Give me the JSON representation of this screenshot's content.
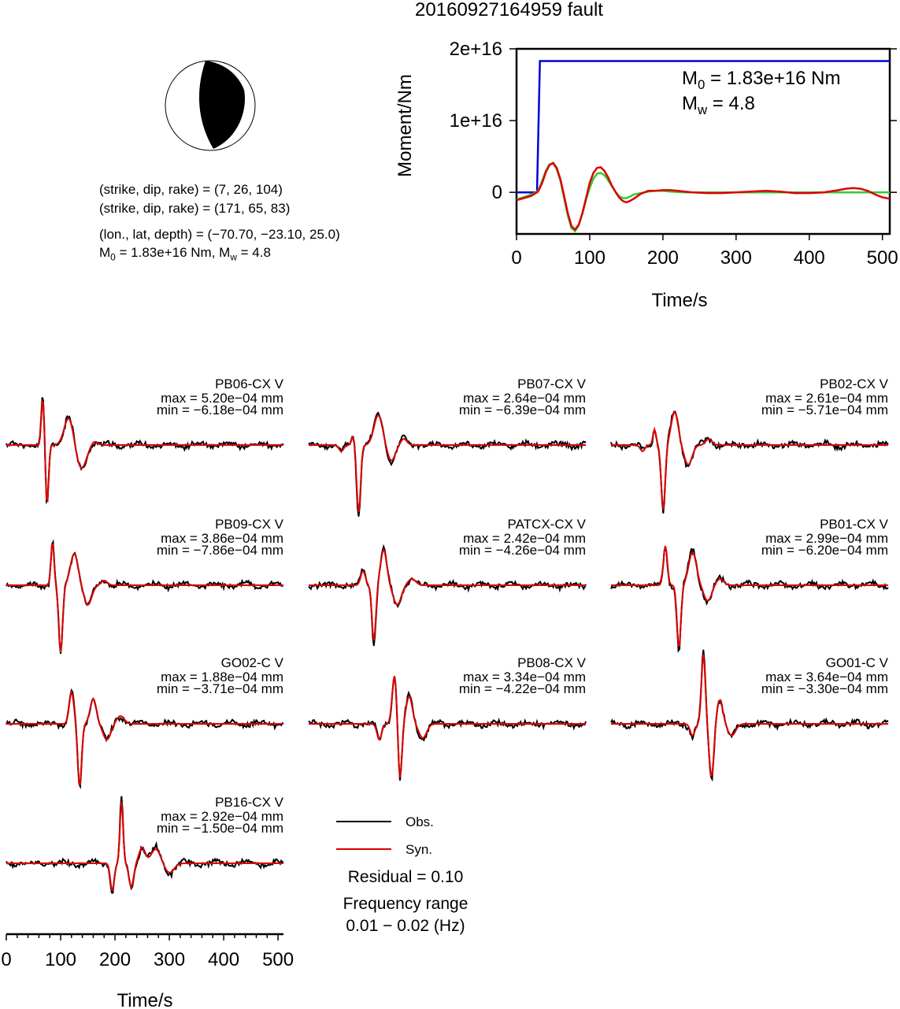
{
  "header": {
    "title": "20160927164959 fault"
  },
  "mechanism": {
    "plane1": "(strike, dip, rake) = (7, 26, 104)",
    "plane2": "(strike, dip, rake) = (171, 65, 83)",
    "location": "(lon., lat, depth) = (−70.70, −23.10, 25.0)",
    "m0_text": "1.83e+16 Nm,",
    "mw_text": "4.8"
  },
  "moment_chart": {
    "ylabel": "Moment/Nm",
    "xlabel": "Time/s",
    "m0_value": "1.83e+16 Nm",
    "mw_value": "4.8",
    "colors": {
      "cumulative": "#0000dd",
      "rate_red": "#dd0000",
      "rate_green": "#33cc33"
    }
  },
  "legend": {
    "obs_label": "Obs.",
    "syn_label": "Syn.",
    "residual": "Residual = 0.10",
    "freq_title": "Frequency range",
    "freq_range": "0.01 − 0.02 (Hz)",
    "obs_color": "#000000",
    "syn_color": "#dd0000"
  },
  "waveform_axis": {
    "xlabel": "Time/s"
  },
  "stations": [
    {
      "name": "PB06-CX V",
      "max": "max = 5.20e−04 mm",
      "min": "min = −6.18e−04 mm"
    },
    {
      "name": "PB07-CX V",
      "max": "max = 2.64e−04 mm",
      "min": "min = −6.39e−04 mm"
    },
    {
      "name": "PB02-CX V",
      "max": "max = 2.61e−04 mm",
      "min": "min = −5.71e−04 mm"
    },
    {
      "name": "PB09-CX V",
      "max": "max = 3.86e−04 mm",
      "min": "min = −7.86e−04 mm"
    },
    {
      "name": "PATCX-CX V",
      "max": "max = 2.42e−04 mm",
      "min": "min = −4.26e−04 mm"
    },
    {
      "name": "PB01-CX V",
      "max": "max = 2.99e−04 mm",
      "min": "min = −6.20e−04 mm"
    },
    {
      "name": "GO02-C V",
      "max": "max = 1.88e−04 mm",
      "min": "min = −3.71e−04 mm"
    },
    {
      "name": "PB08-CX V",
      "max": "max = 3.34e−04 mm",
      "min": "min = −4.22e−04 mm"
    },
    {
      "name": "GO01-C V",
      "max": "max = 3.64e−04 mm",
      "min": "min = −3.30e−04 mm"
    },
    {
      "name": "PB16-CX V",
      "max": "max = 2.92e−04 mm",
      "min": "min = −1.50e−04 mm"
    }
  ],
  "chart_data": [
    {
      "type": "line",
      "xlabel": "Time/s",
      "ylabel": "Moment/Nm",
      "xlim": [
        0,
        510
      ],
      "ylim": [
        -5800000000000000.0,
        2e+16
      ],
      "xticks": [
        0,
        100,
        200,
        300,
        400,
        500
      ],
      "xtick_labels": [
        "0",
        "100",
        "200",
        "300",
        "400",
        "500"
      ],
      "yticks": [
        0,
        1e+16,
        2e+16
      ],
      "ytick_labels": [
        "0",
        "1e+16",
        "2e+16"
      ],
      "annotations": [
        "M0 = 1.83e+16 Nm",
        "Mw = 4.8"
      ],
      "series": [
        {
          "color": "#0000dd",
          "x": [
            0,
            28,
            32,
            510
          ],
          "y": [
            0,
            0,
            1.83e+16,
            1.83e+16
          ]
        },
        {
          "color": "#33cc33",
          "x": [
            0,
            15,
            25,
            30,
            35,
            40,
            45,
            50,
            55,
            60,
            65,
            70,
            75,
            80,
            85,
            90,
            95,
            100,
            105,
            110,
            115,
            120,
            125,
            130,
            135,
            140,
            145,
            150,
            155,
            160,
            170,
            180,
            190,
            200,
            210,
            220,
            230,
            240,
            260,
            280,
            300,
            320,
            340,
            360,
            380,
            400,
            420,
            440,
            460,
            480,
            500,
            510
          ],
          "y": [
            -1000000000000000.0,
            -500000000000000.0,
            -100000000000000.0,
            300000000000000.0,
            1600000000000000.0,
            3000000000000000.0,
            3900000000000000.0,
            4000000000000000.0,
            3200000000000000.0,
            1600000000000000.0,
            -800000000000000.0,
            -3200000000000000.0,
            -5000000000000000.0,
            -5400000000000000.0,
            -4600000000000000.0,
            -3000000000000000.0,
            -1000000000000000.0,
            600000000000000.0,
            1900000000000000.0,
            2600000000000000.0,
            2700000000000000.0,
            2400000000000000.0,
            1700000000000000.0,
            900000000000000.0,
            100000000000000.0,
            -500000000000000.0,
            -800000000000000.0,
            -800000000000000.0,
            -600000000000000.0,
            -300000000000000.0,
            -100000000000000.0,
            100000000000000.0,
            200000000000000.0,
            200000000000000.0,
            100000000000000.0,
            50000000000000.0,
            0,
            0,
            0,
            0,
            0,
            0,
            0,
            0,
            0,
            0,
            0,
            0,
            0,
            0,
            0,
            0
          ]
        },
        {
          "color": "#dd0000",
          "x": [
            0,
            10,
            20,
            25,
            30,
            35,
            40,
            45,
            50,
            55,
            60,
            65,
            70,
            75,
            80,
            85,
            90,
            95,
            100,
            105,
            110,
            115,
            120,
            125,
            130,
            135,
            140,
            145,
            150,
            155,
            160,
            170,
            180,
            190,
            200,
            210,
            220,
            230,
            240,
            260,
            280,
            300,
            320,
            340,
            360,
            380,
            400,
            420,
            440,
            450,
            460,
            470,
            480,
            490,
            500,
            510
          ],
          "y": [
            -1100000000000000.0,
            -800000000000000.0,
            -500000000000000.0,
            -200000000000000.0,
            200000000000000.0,
            1300000000000000.0,
            2800000000000000.0,
            3800000000000000.0,
            4100000000000000.0,
            3400000000000000.0,
            1800000000000000.0,
            -500000000000000.0,
            -2900000000000000.0,
            -4700000000000000.0,
            -5200000000000000.0,
            -4500000000000000.0,
            -2900000000000000.0,
            -800000000000000.0,
            1300000000000000.0,
            2700000000000000.0,
            3400000000000000.0,
            3500000000000000.0,
            3000000000000000.0,
            2100000000000000.0,
            1000000000000000.0,
            100000000000000.0,
            -700000000000000.0,
            -1200000000000000.0,
            -1400000000000000.0,
            -1200000000000000.0,
            -900000000000000.0,
            -200000000000000.0,
            200000000000000.0,
            200000000000000.0,
            300000000000000.0,
            300000000000000.0,
            200000000000000.0,
            100000000000000.0,
            0,
            -100000000000000.0,
            -100000000000000.0,
            0,
            100000000000000.0,
            200000000000000.0,
            100000000000000.0,
            -100000000000000.0,
            -100000000000000.0,
            0,
            300000000000000.0,
            500000000000000.0,
            600000000000000.0,
            500000000000000.0,
            200000000000000.0,
            -300000000000000.0,
            -700000000000000.0,
            -900000000000000.0
          ]
        }
      ]
    },
    {
      "type": "line",
      "xlabel": "Time/s",
      "xlim": [
        0,
        510
      ],
      "xticks": [
        0,
        100,
        200,
        300,
        400,
        500
      ],
      "xtick_labels": [
        "0",
        "100",
        "200",
        "300",
        "400",
        "500"
      ],
      "note": "normalized waveforms (Obs. black, Syn. red); x in seconds, y in units of peak amplitude",
      "stations": [
        {
          "name": "PB06-CX V",
          "obs": {
            "x": [
              0,
              20,
              40,
              50,
              55,
              60,
              65,
              68,
              72,
              76,
              80,
              85,
              90,
              95,
              100,
              105,
              110,
              115,
              120,
              125,
              130,
              140,
              150,
              160,
              170,
              180,
              190,
              200,
              220,
              240,
              260,
              280,
              300,
              320,
              340,
              360,
              380,
              400,
              420,
              440,
              460,
              480,
              500,
              510
            ],
            "y": [
              0,
              0.02,
              0.05,
              0,
              -0.2,
              0.1,
              0.7,
              1.05,
              0.3,
              -0.6,
              -1.05,
              -0.4,
              0.2,
              0.45,
              0.55,
              0.45,
              0.2,
              -0.15,
              -0.4,
              -0.55,
              -0.3,
              0.05,
              0.1,
              -0.05,
              0.05,
              0,
              -0.05,
              0.05,
              0,
              -0.04,
              0.03,
              0,
              0.02,
              -0.03,
              0.02,
              0,
              0.02,
              -0.02,
              0,
              0.02,
              -0.02,
              0,
              0.02,
              0
            ]
          },
          "syn": {
            "x": [
              0,
              20,
              40,
              50,
              55,
              60,
              65,
              68,
              72,
              76,
              80,
              85,
              90,
              95,
              100,
              105,
              110,
              115,
              120,
              125,
              130,
              140,
              150,
              160,
              200,
              250,
              300,
              350,
              400,
              450,
              500,
              510
            ],
            "y": [
              0,
              0,
              0.04,
              0,
              -0.15,
              0.1,
              0.6,
              0.85,
              0.2,
              -0.55,
              -0.95,
              -0.4,
              0.2,
              0.45,
              0.5,
              0.4,
              0.15,
              -0.2,
              -0.4,
              -0.5,
              -0.3,
              0.02,
              0.08,
              0.02,
              0,
              0,
              0,
              0,
              0,
              0,
              0,
              0
            ]
          }
        },
        {
          "name": "PB07-CX V",
          "obs": {
            "x": [
              0,
              20,
              40,
              60,
              70,
              75,
              80,
              85,
              90,
              95,
              100,
              110,
              120,
              130,
              140,
              150,
              160,
              170,
              180,
              190,
              200,
              220,
              240,
              260,
              280,
              300,
              320,
              340,
              360,
              380,
              400,
              420,
              440,
              460,
              480,
              500,
              510
            ],
            "y": [
              0,
              0.02,
              0.04,
              0.1,
              0.3,
              0.1,
              -0.5,
              -0.9,
              -0.4,
              0.3,
              0.6,
              0.5,
              0.2,
              -0.1,
              -0.2,
              -0.1,
              0.05,
              0.1,
              0,
              0.03,
              -0.02,
              0.04,
              -0.03,
              0.02,
              0,
              0.03,
              -0.02,
              0.02,
              0,
              0.03,
              -0.02,
              0.01,
              0,
              0.02,
              -0.02,
              0,
              -0.02
            ]
          },
          "syn": {
            "x": [
              0,
              20,
              40,
              60,
              70,
              75,
              80,
              85,
              90,
              95,
              100,
              110,
              120,
              130,
              140,
              150,
              160,
              170,
              200,
              250,
              300,
              350,
              400,
              450,
              500,
              510
            ],
            "y": [
              0,
              0,
              0.03,
              0.08,
              0.28,
              0.08,
              -0.45,
              -0.85,
              -0.35,
              0.3,
              0.55,
              0.45,
              0.15,
              -0.12,
              -0.18,
              -0.05,
              0.05,
              0.02,
              0,
              0,
              0,
              0,
              0,
              0,
              0,
              0
            ]
          }
        }
      ]
    }
  ]
}
